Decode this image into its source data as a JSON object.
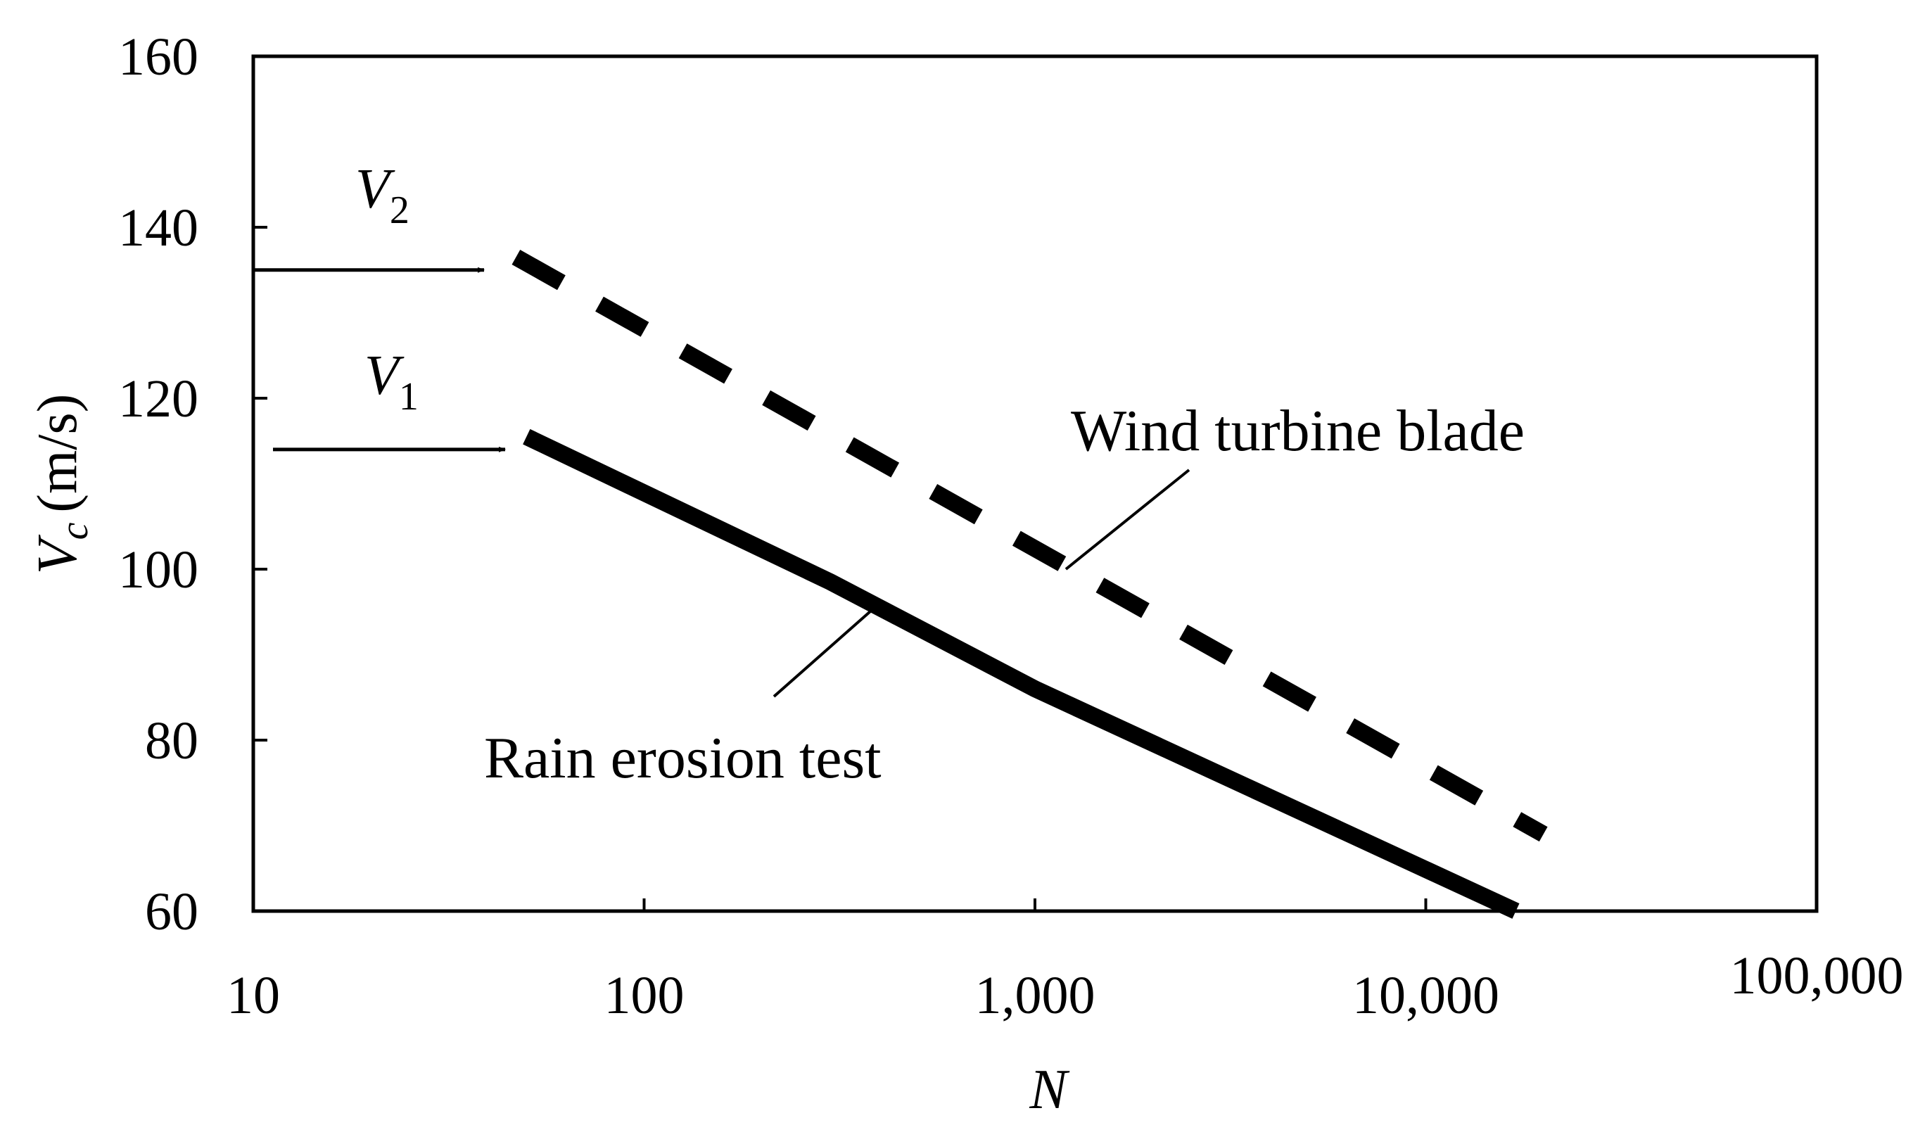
{
  "chart_data": {
    "type": "line",
    "x_scale": "log",
    "xlim": [
      10,
      100000
    ],
    "ylim": [
      60,
      160
    ],
    "x_ticks": [
      10,
      100,
      1000,
      10000,
      100000
    ],
    "x_tick_labels": [
      "10",
      "100",
      "1,000",
      "10,000",
      "100,000"
    ],
    "y_ticks": [
      60,
      80,
      100,
      120,
      140,
      160
    ],
    "y_tick_labels": [
      "60",
      "80",
      "100",
      "120",
      "140",
      "160"
    ],
    "xlabel": "N",
    "ylabel_symbol": "V",
    "ylabel_subscript": "c",
    "ylabel_unit": "(m/s)",
    "series": [
      {
        "name": "Wind turbine blade",
        "style": "dashed",
        "x": [
          47,
          20000
        ],
        "y": [
          136.5,
          69
        ]
      },
      {
        "name": "Rain erosion test",
        "style": "solid",
        "x": [
          50,
          300,
          1000,
          17000
        ],
        "y": [
          115.5,
          98.5,
          86,
          60
        ]
      }
    ],
    "annotations": [
      {
        "id": "wind",
        "text": "Wind turbine blade",
        "points_to": {
          "x": 1200,
          "y": 100
        }
      },
      {
        "id": "rain",
        "text": "Rain erosion test",
        "points_to": {
          "x": 400,
          "y": 96
        }
      }
    ],
    "markers": [
      {
        "id": "v2",
        "symbol": "V",
        "subscript": "2",
        "level": 135
      },
      {
        "id": "v1",
        "symbol": "V",
        "subscript": "1",
        "level": 114
      }
    ]
  },
  "colors": {
    "axis": "#000000",
    "series": "#000000",
    "background": "#ffffff"
  }
}
